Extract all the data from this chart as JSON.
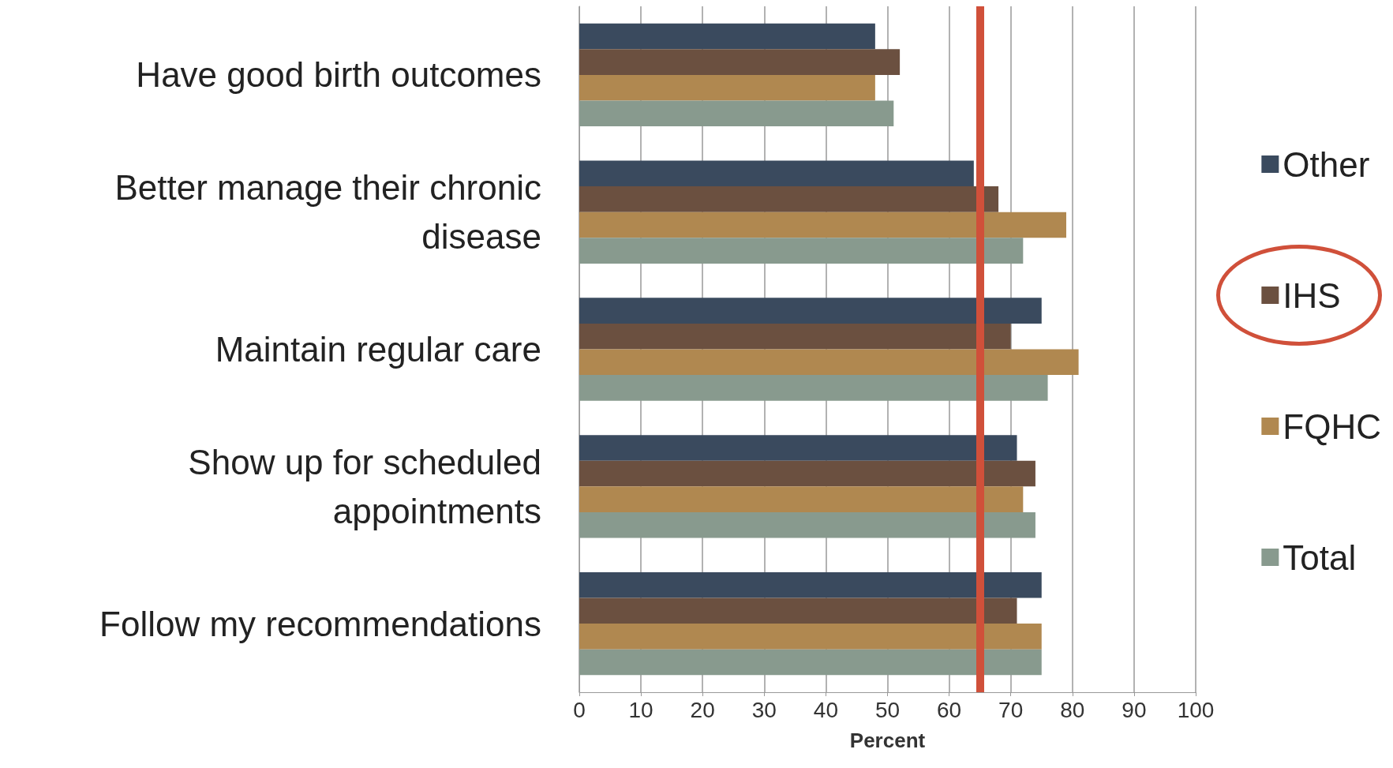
{
  "chart_data": {
    "type": "bar",
    "orientation": "horizontal",
    "xlabel": "Percent",
    "categories": [
      "Have good birth outcomes",
      "Better manage their chronic\ndisease",
      "Maintain regular care",
      "Show up for scheduled\nappointments",
      "Follow my recommendations"
    ],
    "series": [
      {
        "name": "Other",
        "color": "#3a4a5e",
        "values": [
          48,
          64,
          75,
          71,
          75
        ]
      },
      {
        "name": "IHS",
        "color": "#6b5040",
        "values": [
          52,
          68,
          70,
          74,
          71
        ]
      },
      {
        "name": "FQHC",
        "color": "#b08850",
        "values": [
          48,
          79,
          81,
          72,
          75
        ]
      },
      {
        "name": "Total",
        "color": "#889a8e",
        "values": [
          51,
          72,
          76,
          74,
          75
        ]
      }
    ],
    "xlim": [
      0,
      100
    ],
    "xticks": [
      0,
      10,
      20,
      30,
      40,
      50,
      60,
      70,
      80,
      90,
      100
    ],
    "ref_lines": [
      {
        "axis": "x",
        "value": 65,
        "color": "#d0503a",
        "line_style": "solid"
      }
    ],
    "grid": "x",
    "legend": "right"
  }
}
